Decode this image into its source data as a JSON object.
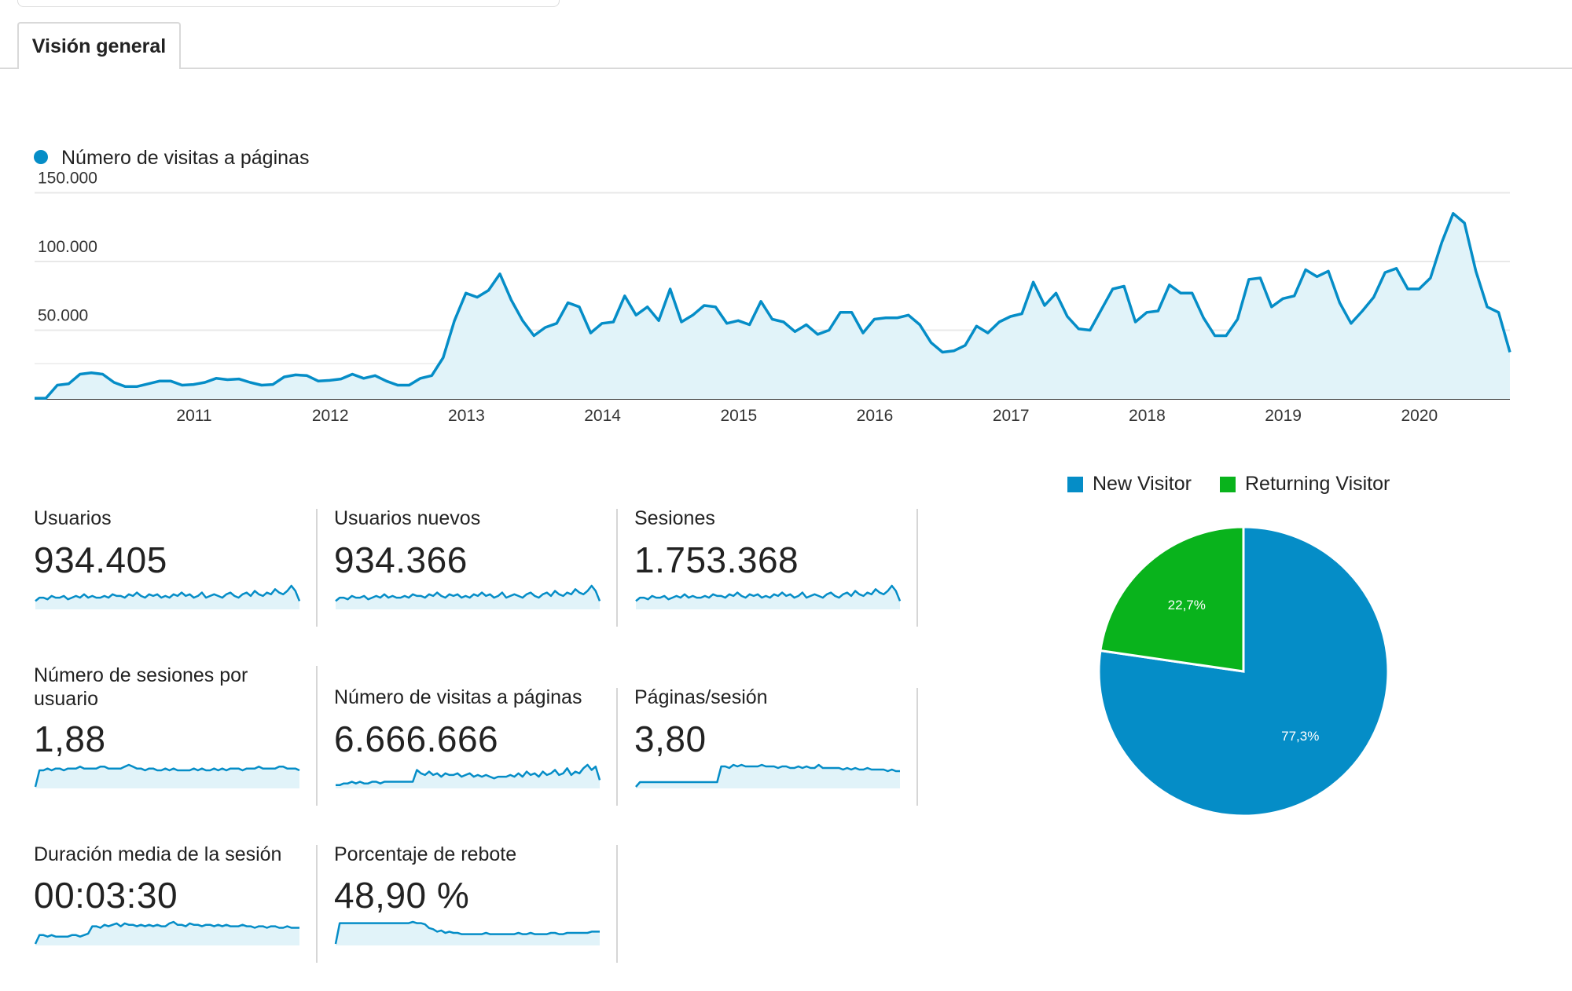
{
  "tabs": [
    {
      "label": "Visión general"
    }
  ],
  "chart_data": [
    {
      "type": "area",
      "title": "",
      "series": [
        {
          "name": "Número de visitas a páginas",
          "color": "#058dc7",
          "values": [
            500,
            500,
            10000,
            11000,
            18000,
            19000,
            18000,
            12000,
            9000,
            9000,
            11000,
            13000,
            13000,
            10000,
            10500,
            12000,
            15000,
            14000,
            14500,
            12000,
            10000,
            10500,
            16000,
            17500,
            17000,
            13000,
            13500,
            14500,
            18000,
            15000,
            17000,
            13000,
            10000,
            10000,
            15000,
            17000,
            30000,
            57000,
            77000,
            74000,
            79000,
            91000,
            72000,
            57000,
            46000,
            52000,
            55000,
            70000,
            67000,
            48000,
            55000,
            56000,
            75000,
            61000,
            67000,
            57000,
            80000,
            56000,
            61000,
            68000,
            67000,
            55000,
            57000,
            54000,
            71000,
            58000,
            56000,
            49000,
            54000,
            47000,
            50000,
            63000,
            63000,
            48000,
            58000,
            59000,
            59000,
            61000,
            54000,
            41000,
            34000,
            35000,
            39000,
            53000,
            48000,
            56000,
            60000,
            62000,
            85000,
            68000,
            77000,
            60000,
            51000,
            50000,
            65000,
            80000,
            82000,
            56000,
            63000,
            64000,
            83000,
            77000,
            77000,
            59000,
            46000,
            46000,
            58000,
            87000,
            88000,
            67000,
            73000,
            75000,
            94000,
            89000,
            93000,
            70000,
            55000,
            64000,
            74000,
            92000,
            95000,
            80000,
            80000,
            88000,
            114000,
            135000,
            128000,
            93000,
            67000,
            63000,
            34000
          ]
        }
      ],
      "x_tick_labels": [
        "2011",
        "2012",
        "2013",
        "2014",
        "2015",
        "2016",
        "2017",
        "2018",
        "2019",
        "2020"
      ],
      "y_tick_labels": [
        "150.000",
        "100.000",
        "50.000"
      ],
      "y_ticks": [
        150000,
        100000,
        50000
      ],
      "ylim": [
        0,
        160000
      ]
    },
    {
      "type": "pie",
      "categories": [
        "New Visitor",
        "Returning Visitor"
      ],
      "values": [
        77.3,
        22.7
      ],
      "value_labels": [
        "77,3%",
        "22,7%"
      ],
      "colors": [
        "#058dc7",
        "#09b31c"
      ],
      "legend": "top"
    }
  ],
  "metrics": [
    {
      "label": "Usuarios",
      "value": "934.405",
      "spark": [
        4,
        6,
        6,
        5,
        7,
        6,
        6,
        7,
        5,
        6,
        7,
        6,
        8,
        6,
        7,
        6,
        6,
        7,
        6,
        8,
        7,
        7,
        6,
        8,
        7,
        9,
        7,
        6,
        8,
        7,
        8,
        6,
        7,
        6,
        8,
        7,
        9,
        7,
        8,
        6,
        7,
        9,
        6,
        7,
        8,
        7,
        6,
        8,
        9,
        7,
        6,
        8,
        9,
        7,
        10,
        8,
        7,
        9,
        8,
        11,
        9,
        8,
        10,
        13,
        10,
        4
      ]
    },
    {
      "label": "Usuarios nuevos",
      "value": "934.366",
      "spark": [
        4,
        6,
        6,
        5,
        7,
        6,
        6,
        7,
        5,
        6,
        7,
        6,
        8,
        6,
        7,
        6,
        6,
        7,
        6,
        8,
        7,
        7,
        6,
        8,
        7,
        9,
        7,
        6,
        8,
        7,
        8,
        6,
        7,
        6,
        8,
        7,
        9,
        7,
        8,
        6,
        7,
        9,
        6,
        7,
        8,
        7,
        6,
        8,
        9,
        7,
        6,
        8,
        9,
        7,
        10,
        8,
        7,
        9,
        8,
        11,
        9,
        8,
        10,
        13,
        10,
        4
      ]
    },
    {
      "label": "Sesiones",
      "value": "1.753.368",
      "spark": [
        4,
        6,
        6,
        5,
        7,
        6,
        6,
        7,
        5,
        6,
        7,
        6,
        8,
        6,
        7,
        6,
        6,
        7,
        6,
        8,
        7,
        7,
        6,
        8,
        7,
        9,
        7,
        6,
        8,
        7,
        8,
        6,
        7,
        6,
        8,
        7,
        9,
        7,
        8,
        6,
        7,
        9,
        6,
        7,
        8,
        7,
        6,
        8,
        9,
        7,
        6,
        8,
        9,
        7,
        10,
        8,
        7,
        9,
        8,
        11,
        9,
        8,
        10,
        13,
        10,
        4
      ]
    },
    {
      "label": "Número de sesiones por usuario",
      "value": "1,88",
      "spark": [
        0,
        9,
        9,
        10,
        9,
        10,
        10,
        9,
        10,
        10,
        10,
        11,
        10,
        10,
        10,
        10,
        11,
        11,
        10,
        10,
        10,
        10,
        11,
        12,
        11,
        10,
        10,
        9,
        10,
        10,
        9,
        9,
        10,
        9,
        10,
        9,
        9,
        9,
        9,
        10,
        9,
        10,
        9,
        9,
        10,
        9,
        10,
        9,
        10,
        10,
        10,
        9,
        10,
        10,
        10,
        11,
        10,
        10,
        10,
        10,
        11,
        11,
        10,
        10,
        10,
        9
      ]
    },
    {
      "label": "Número de visitas a páginas",
      "value": "6.666.666",
      "spark": [
        1,
        1,
        2,
        2,
        3,
        2,
        3,
        2,
        2,
        3,
        3,
        2,
        3,
        3,
        3,
        3,
        3,
        3,
        3,
        3,
        10,
        8,
        7,
        9,
        7,
        8,
        6,
        8,
        7,
        7,
        8,
        6,
        7,
        8,
        6,
        7,
        6,
        7,
        6,
        5,
        6,
        6,
        6,
        7,
        6,
        8,
        6,
        9,
        7,
        8,
        6,
        9,
        7,
        8,
        10,
        7,
        8,
        11,
        7,
        9,
        8,
        11,
        13,
        10,
        12,
        4
      ]
    },
    {
      "label": "Páginas/sesión",
      "value": "3,80",
      "spark": [
        0,
        3,
        3,
        3,
        3,
        3,
        3,
        3,
        3,
        3,
        3,
        3,
        3,
        3,
        3,
        3,
        3,
        3,
        3,
        3,
        3,
        13,
        13,
        12,
        14,
        13,
        14,
        13,
        13,
        13,
        13,
        14,
        13,
        13,
        13,
        12,
        13,
        13,
        12,
        12,
        13,
        12,
        13,
        12,
        12,
        14,
        12,
        12,
        12,
        12,
        12,
        11,
        12,
        11,
        12,
        11,
        11,
        12,
        11,
        11,
        11,
        11,
        10,
        11,
        10,
        10
      ]
    },
    {
      "label": "Duración media de la sesión",
      "value": "00:03:30",
      "spark": [
        0,
        6,
        6,
        5,
        6,
        5,
        5,
        5,
        5,
        6,
        6,
        5,
        6,
        7,
        12,
        12,
        11,
        13,
        12,
        13,
        14,
        12,
        14,
        13,
        13,
        12,
        13,
        12,
        13,
        12,
        13,
        12,
        12,
        14,
        15,
        13,
        13,
        12,
        14,
        13,
        13,
        12,
        13,
        13,
        12,
        13,
        12,
        13,
        12,
        12,
        12,
        13,
        12,
        12,
        11,
        12,
        12,
        11,
        12,
        12,
        11,
        11,
        12,
        11,
        11,
        11
      ]
    },
    {
      "label": "Porcentaje de rebote",
      "value": "48,90 %",
      "spark": [
        0,
        17,
        17,
        17,
        17,
        17,
        17,
        17,
        17,
        17,
        17,
        17,
        17,
        17,
        17,
        17,
        17,
        17,
        17,
        18,
        17,
        17,
        16,
        13,
        12,
        10,
        11,
        9,
        10,
        9,
        9,
        8,
        8,
        8,
        8,
        8,
        8,
        9,
        8,
        8,
        8,
        8,
        8,
        8,
        8,
        9,
        8,
        8,
        9,
        8,
        8,
        8,
        8,
        9,
        9,
        8,
        8,
        9,
        9,
        9,
        9,
        9,
        9,
        10,
        10,
        10
      ]
    }
  ],
  "pie_legend": [
    {
      "label": "New Visitor"
    },
    {
      "label": "Returning Visitor"
    }
  ]
}
